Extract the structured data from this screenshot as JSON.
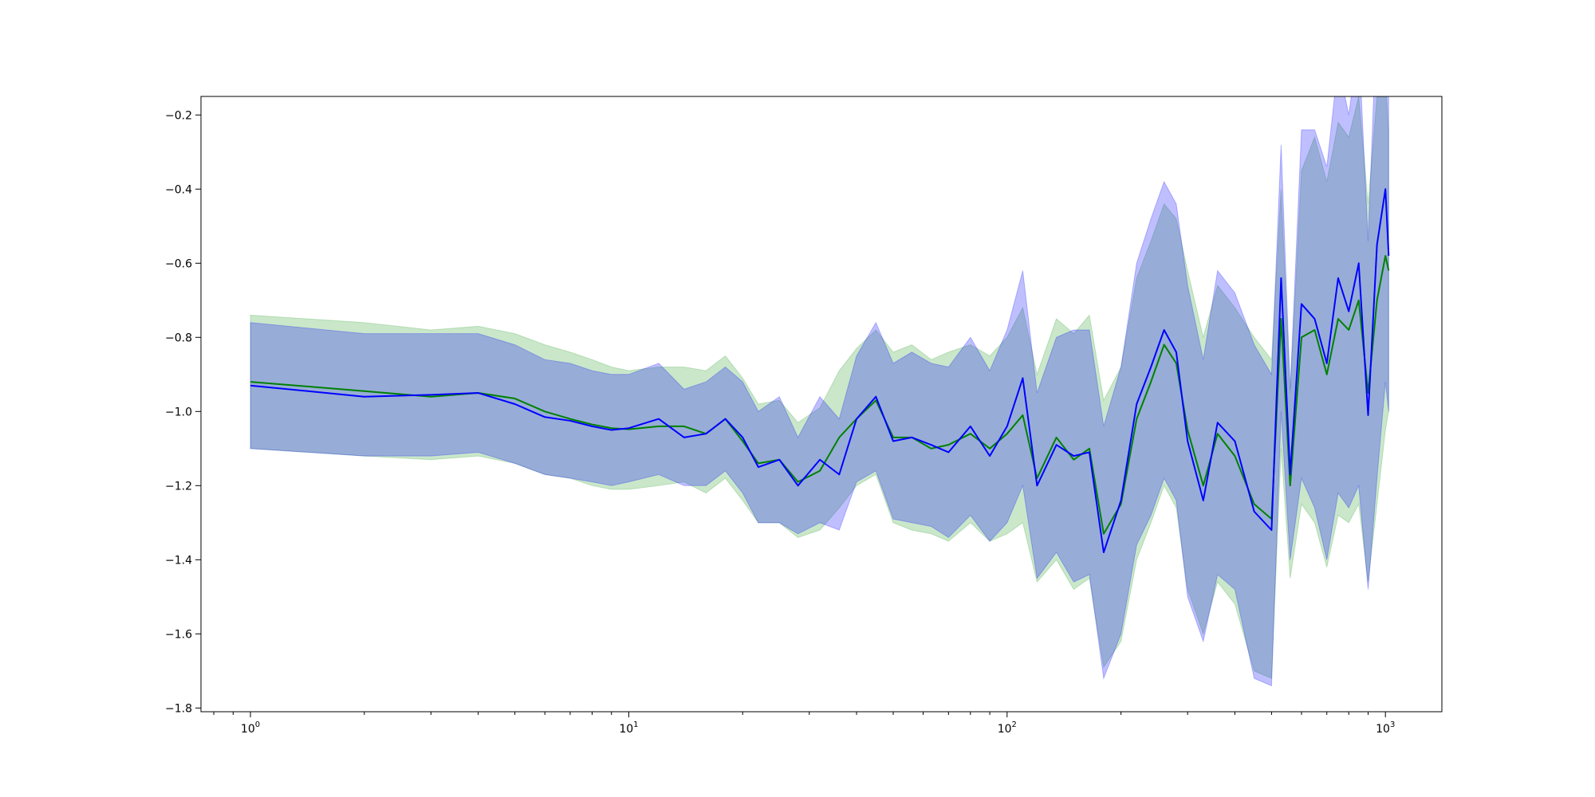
{
  "chart_data": {
    "type": "line",
    "xscale": "log",
    "xlim": [
      0.74,
      1410
    ],
    "ylim": [
      -1.81,
      -0.15
    ],
    "grid": false,
    "legend": "none",
    "title": "",
    "xlabel": "",
    "ylabel": "",
    "x_ticks": [
      {
        "value": 1,
        "base": "10",
        "exp": "0"
      },
      {
        "value": 10,
        "base": "10",
        "exp": "1"
      },
      {
        "value": 100,
        "base": "10",
        "exp": "2"
      },
      {
        "value": 1000,
        "base": "10",
        "exp": "3"
      }
    ],
    "y_ticks": [
      {
        "value": -0.2,
        "label": "−0.2"
      },
      {
        "value": -0.4,
        "label": "−0.4"
      },
      {
        "value": -0.6,
        "label": "−0.6"
      },
      {
        "value": -0.8,
        "label": "−0.8"
      },
      {
        "value": -1.0,
        "label": "−1.0"
      },
      {
        "value": -1.2,
        "label": "−1.2"
      },
      {
        "value": -1.4,
        "label": "−1.4"
      },
      {
        "value": -1.6,
        "label": "−1.6"
      },
      {
        "value": -1.8,
        "label": "−1.8"
      }
    ],
    "series": [
      {
        "color": "#008000",
        "band_color": "#2ca02c",
        "band_opacity": 0.25,
        "x": [
          1,
          2,
          3,
          4,
          5,
          6,
          7,
          8,
          9,
          10,
          12,
          14,
          16,
          18,
          20,
          22,
          25,
          28,
          32,
          36,
          40,
          45,
          50,
          56,
          63,
          70,
          80,
          90,
          100,
          110,
          120,
          135,
          150,
          165,
          180,
          200,
          220,
          240,
          260,
          280,
          300,
          330,
          360,
          400,
          450,
          500,
          530,
          560,
          600,
          650,
          700,
          750,
          800,
          850,
          900,
          950,
          1000,
          1020
        ],
        "values": [
          -0.92,
          -0.945,
          -0.96,
          -0.95,
          -0.965,
          -1.0,
          -1.02,
          -1.035,
          -1.045,
          -1.048,
          -1.04,
          -1.04,
          -1.06,
          -1.02,
          -1.08,
          -1.14,
          -1.13,
          -1.19,
          -1.16,
          -1.07,
          -1.02,
          -0.97,
          -1.07,
          -1.07,
          -1.1,
          -1.09,
          -1.06,
          -1.1,
          -1.06,
          -1.01,
          -1.18,
          -1.07,
          -1.13,
          -1.1,
          -1.33,
          -1.25,
          -1.02,
          -0.92,
          -0.82,
          -0.87,
          -1.05,
          -1.2,
          -1.06,
          -1.12,
          -1.25,
          -1.29,
          -0.75,
          -1.2,
          -0.8,
          -0.78,
          -0.9,
          -0.75,
          -0.78,
          -0.7,
          -0.95,
          -0.7,
          -0.58,
          -0.62
        ],
        "lower": [
          -1.1,
          -1.12,
          -1.13,
          -1.12,
          -1.14,
          -1.17,
          -1.18,
          -1.2,
          -1.21,
          -1.21,
          -1.2,
          -1.19,
          -1.22,
          -1.18,
          -1.24,
          -1.3,
          -1.3,
          -1.34,
          -1.32,
          -1.26,
          -1.2,
          -1.17,
          -1.3,
          -1.32,
          -1.33,
          -1.35,
          -1.3,
          -1.35,
          -1.33,
          -1.3,
          -1.46,
          -1.4,
          -1.48,
          -1.45,
          -1.69,
          -1.62,
          -1.4,
          -1.3,
          -1.2,
          -1.26,
          -1.48,
          -1.6,
          -1.46,
          -1.52,
          -1.7,
          -1.72,
          -1.1,
          -1.45,
          -1.25,
          -1.3,
          -1.42,
          -1.28,
          -1.3,
          -1.25,
          -1.46,
          -1.25,
          -1.05,
          -1.0
        ],
        "upper": [
          -0.74,
          -0.76,
          -0.78,
          -0.77,
          -0.79,
          -0.82,
          -0.84,
          -0.86,
          -0.88,
          -0.89,
          -0.88,
          -0.88,
          -0.89,
          -0.85,
          -0.91,
          -0.98,
          -0.97,
          -1.03,
          -0.99,
          -0.89,
          -0.83,
          -0.78,
          -0.84,
          -0.82,
          -0.86,
          -0.84,
          -0.82,
          -0.85,
          -0.8,
          -0.72,
          -0.9,
          -0.75,
          -0.79,
          -0.74,
          -0.97,
          -0.88,
          -0.64,
          -0.54,
          -0.44,
          -0.48,
          -0.62,
          -0.8,
          -0.66,
          -0.72,
          -0.8,
          -0.86,
          -0.4,
          -0.95,
          -0.35,
          -0.26,
          -0.38,
          -0.22,
          -0.26,
          -0.15,
          -0.44,
          -0.15,
          -0.11,
          -0.24
        ]
      },
      {
        "color": "#0000ff",
        "band_color": "#0000ff",
        "band_opacity": 0.25,
        "x": [
          1,
          2,
          3,
          4,
          5,
          6,
          7,
          8,
          9,
          10,
          12,
          14,
          16,
          18,
          20,
          22,
          25,
          28,
          32,
          36,
          40,
          45,
          50,
          56,
          63,
          70,
          80,
          90,
          100,
          110,
          120,
          135,
          150,
          165,
          180,
          200,
          220,
          240,
          260,
          280,
          300,
          330,
          360,
          400,
          450,
          500,
          530,
          560,
          600,
          650,
          700,
          750,
          800,
          850,
          900,
          950,
          1000,
          1020
        ],
        "values": [
          -0.93,
          -0.96,
          -0.955,
          -0.95,
          -0.98,
          -1.015,
          -1.025,
          -1.04,
          -1.05,
          -1.045,
          -1.02,
          -1.07,
          -1.06,
          -1.02,
          -1.07,
          -1.15,
          -1.13,
          -1.2,
          -1.13,
          -1.17,
          -1.02,
          -0.96,
          -1.08,
          -1.07,
          -1.09,
          -1.11,
          -1.04,
          -1.12,
          -1.04,
          -0.91,
          -1.2,
          -1.09,
          -1.12,
          -1.11,
          -1.38,
          -1.24,
          -0.98,
          -0.88,
          -0.78,
          -0.84,
          -1.08,
          -1.24,
          -1.03,
          -1.08,
          -1.27,
          -1.32,
          -0.64,
          -1.17,
          -0.71,
          -0.75,
          -0.87,
          -0.64,
          -0.73,
          -0.6,
          -1.01,
          -0.55,
          -0.4,
          -0.58
        ],
        "lower": [
          -1.1,
          -1.12,
          -1.12,
          -1.11,
          -1.14,
          -1.17,
          -1.18,
          -1.19,
          -1.2,
          -1.19,
          -1.17,
          -1.2,
          -1.2,
          -1.16,
          -1.22,
          -1.3,
          -1.3,
          -1.33,
          -1.3,
          -1.32,
          -1.19,
          -1.16,
          -1.29,
          -1.3,
          -1.31,
          -1.34,
          -1.28,
          -1.35,
          -1.3,
          -1.2,
          -1.45,
          -1.38,
          -1.46,
          -1.44,
          -1.72,
          -1.6,
          -1.36,
          -1.28,
          -1.18,
          -1.24,
          -1.5,
          -1.62,
          -1.44,
          -1.48,
          -1.72,
          -1.74,
          -1.0,
          -1.4,
          -1.18,
          -1.26,
          -1.4,
          -1.22,
          -1.26,
          -1.2,
          -1.48,
          -1.18,
          -0.92,
          -1.0
        ],
        "upper": [
          -0.76,
          -0.79,
          -0.79,
          -0.79,
          -0.82,
          -0.86,
          -0.87,
          -0.89,
          -0.9,
          -0.9,
          -0.87,
          -0.94,
          -0.92,
          -0.88,
          -0.92,
          -1.0,
          -0.96,
          -1.07,
          -0.96,
          -1.02,
          -0.85,
          -0.76,
          -0.87,
          -0.84,
          -0.87,
          -0.88,
          -0.8,
          -0.89,
          -0.78,
          -0.62,
          -0.95,
          -0.8,
          -0.78,
          -0.78,
          -1.04,
          -0.88,
          -0.6,
          -0.48,
          -0.38,
          -0.44,
          -0.66,
          -0.86,
          -0.62,
          -0.68,
          -0.82,
          -0.9,
          -0.28,
          -0.94,
          -0.24,
          -0.24,
          -0.34,
          -0.06,
          -0.2,
          0.0,
          -0.54,
          0.08,
          0.12,
          -0.16
        ]
      }
    ]
  }
}
